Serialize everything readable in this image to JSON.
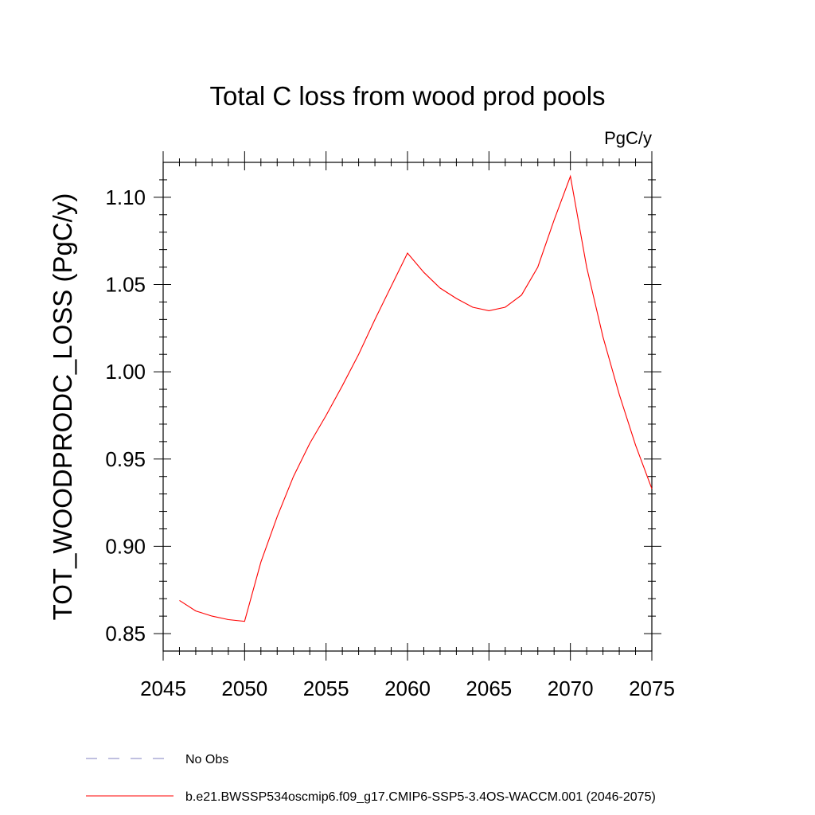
{
  "chart_data": {
    "type": "line",
    "title": "Total C loss from wood prod pools",
    "units_label": "PgC/y",
    "xlabel": "",
    "ylabel": "TOT_WOODPRODC_LOSS  (PgC/y)",
    "xlim": [
      2045,
      2075
    ],
    "ylim": [
      0.84,
      1.12
    ],
    "x_ticks": [
      2045,
      2050,
      2055,
      2060,
      2065,
      2070,
      2075
    ],
    "x_tick_labels": [
      "2045",
      "2050",
      "2055",
      "2060",
      "2065",
      "2070",
      "2075"
    ],
    "y_ticks": [
      0.85,
      0.9,
      0.95,
      1.0,
      1.05,
      1.1
    ],
    "y_tick_labels": [
      "0.85",
      "0.90",
      "0.95",
      "1.00",
      "1.05",
      "1.10"
    ],
    "grid": false,
    "legend_placement": "bottom",
    "series": [
      {
        "name": "b.e21.BWSSP534oscmip6.f09_g17.CMIP6-SSP5-3.4OS-WACCM.001 (2046-2075)",
        "color": "#ff0000",
        "x": [
          2046,
          2047,
          2048,
          2049,
          2050,
          2051,
          2052,
          2053,
          2054,
          2055,
          2056,
          2057,
          2058,
          2059,
          2060,
          2061,
          2062,
          2063,
          2064,
          2065,
          2066,
          2067,
          2068,
          2069,
          2070,
          2071,
          2072,
          2073,
          2074,
          2075
        ],
        "values": [
          0.869,
          0.863,
          0.86,
          0.858,
          0.857,
          0.891,
          0.917,
          0.94,
          0.959,
          0.975,
          0.992,
          1.01,
          1.03,
          1.049,
          1.068,
          1.057,
          1.048,
          1.042,
          1.037,
          1.035,
          1.037,
          1.044,
          1.06,
          1.087,
          1.112,
          1.06,
          1.02,
          0.987,
          0.958,
          0.933
        ]
      }
    ],
    "legend": [
      {
        "label": "No Obs",
        "color": "#8080c0",
        "style": "dashed"
      },
      {
        "label": "b.e21.BWSSP534oscmip6.f09_g17.CMIP6-SSP5-3.4OS-WACCM.001 (2046-2075)",
        "color": "#ff0000",
        "style": "solid"
      }
    ]
  }
}
